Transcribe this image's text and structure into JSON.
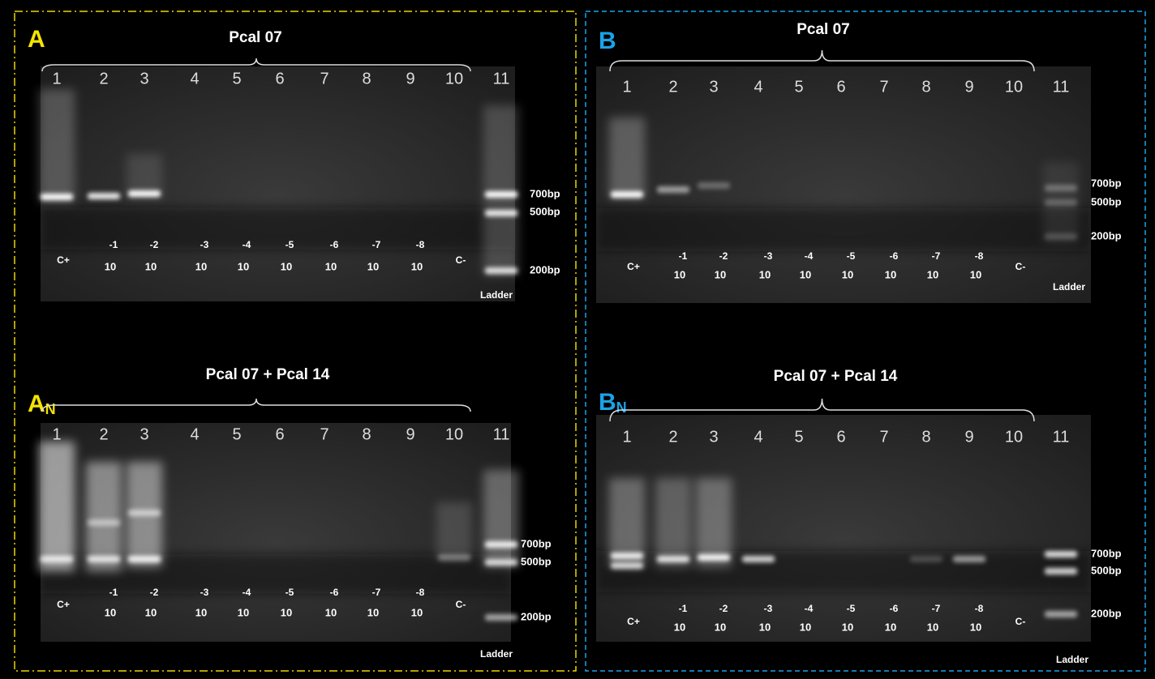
{
  "panels": [
    {
      "label": "A",
      "title": "Pcal  07",
      "lanes": [
        "1",
        "2",
        "3",
        "4",
        "5",
        "6",
        "7",
        "8",
        "9",
        "10",
        "11"
      ],
      "sample_labels": [
        {
          "base": "C+"
        },
        {
          "exp": "-1",
          "base": "10"
        },
        {
          "exp": "-2",
          "base": "10"
        },
        {
          "exp": "-3",
          "base": "10"
        },
        {
          "exp": "-4",
          "base": "10"
        },
        {
          "exp": "-5",
          "base": "10"
        },
        {
          "exp": "-6",
          "base": "10"
        },
        {
          "exp": "-7",
          "base": "10"
        },
        {
          "exp": "-8",
          "base": "10"
        },
        {
          "base": "C-"
        }
      ],
      "markers": [
        "700bp",
        "500bp",
        "200bp"
      ],
      "ladder": "Ladder"
    },
    {
      "label": "A",
      "label_sub": "N",
      "title": "Pcal  07 + Pcal 14",
      "lanes": [
        "1",
        "2",
        "3",
        "4",
        "5",
        "6",
        "7",
        "8",
        "9",
        "10",
        "11"
      ],
      "sample_labels": [
        {
          "base": "C+"
        },
        {
          "exp": "-1",
          "base": "10"
        },
        {
          "exp": "-2",
          "base": "10"
        },
        {
          "exp": "-3",
          "base": "10"
        },
        {
          "exp": "-4",
          "base": "10"
        },
        {
          "exp": "-5",
          "base": "10"
        },
        {
          "exp": "-6",
          "base": "10"
        },
        {
          "exp": "-7",
          "base": "10"
        },
        {
          "exp": "-8",
          "base": "10"
        },
        {
          "base": "C-"
        }
      ],
      "markers": [
        "700bp",
        "500bp",
        "200bp"
      ],
      "ladder": "Ladder"
    },
    {
      "label": "B",
      "title": "Pcal  07",
      "lanes": [
        "1",
        "2",
        "3",
        "4",
        "5",
        "6",
        "7",
        "8",
        "9",
        "10",
        "11"
      ],
      "sample_labels": [
        {
          "base": "C+"
        },
        {
          "exp": "-1",
          "base": "10"
        },
        {
          "exp": "-2",
          "base": "10"
        },
        {
          "exp": "-3",
          "base": "10"
        },
        {
          "exp": "-4",
          "base": "10"
        },
        {
          "exp": "-5",
          "base": "10"
        },
        {
          "exp": "-6",
          "base": "10"
        },
        {
          "exp": "-7",
          "base": "10"
        },
        {
          "exp": "-8",
          "base": "10"
        },
        {
          "base": "C-"
        }
      ],
      "markers": [
        "700bp",
        "500bp",
        "200bp"
      ],
      "ladder": "Ladder"
    },
    {
      "label": "B",
      "label_sub": "N",
      "title": "Pcal  07 + Pcal 14",
      "lanes": [
        "1",
        "2",
        "3",
        "4",
        "5",
        "6",
        "7",
        "8",
        "9",
        "10",
        "11"
      ],
      "sample_labels": [
        {
          "base": "C+"
        },
        {
          "exp": "-1",
          "base": "10"
        },
        {
          "exp": "-2",
          "base": "10"
        },
        {
          "exp": "-3",
          "base": "10"
        },
        {
          "exp": "-4",
          "base": "10"
        },
        {
          "exp": "-5",
          "base": "10"
        },
        {
          "exp": "-6",
          "base": "10"
        },
        {
          "exp": "-7",
          "base": "10"
        },
        {
          "exp": "-8",
          "base": "10"
        },
        {
          "base": "C-"
        }
      ],
      "markers": [
        "700bp",
        "500bp",
        "200bp"
      ],
      "ladder": "Ladder"
    }
  ]
}
